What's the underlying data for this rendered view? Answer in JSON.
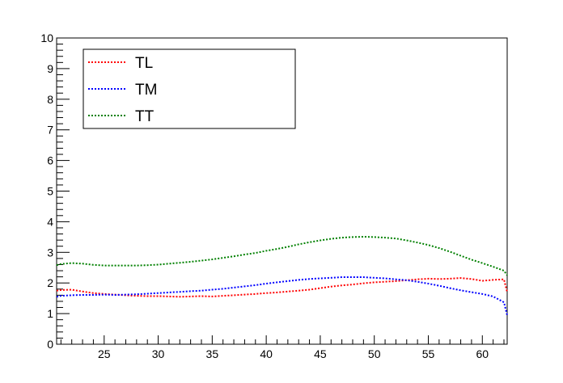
{
  "chart_data": {
    "type": "line",
    "title": "",
    "xlabel": "",
    "ylabel": "",
    "xlim": [
      20.6,
      62.3
    ],
    "ylim": [
      0,
      10
    ],
    "grid": false,
    "legend_position": "top-left",
    "x_ticks": [
      25,
      30,
      35,
      40,
      45,
      50,
      55,
      60
    ],
    "y_ticks": [
      0,
      1,
      2,
      3,
      4,
      5,
      6,
      7,
      8,
      9,
      10
    ],
    "x": [
      20.6,
      21,
      22,
      23,
      24,
      25,
      26,
      27,
      28,
      29,
      30,
      31,
      32,
      33,
      34,
      35,
      36,
      37,
      38,
      39,
      40,
      41,
      42,
      43,
      44,
      45,
      46,
      47,
      48,
      49,
      50,
      51,
      52,
      53,
      54,
      55,
      56,
      57,
      58,
      59,
      60,
      61,
      62,
      62.3
    ],
    "series": [
      {
        "name": "TL",
        "color": "#ff0000",
        "values": [
          1.75,
          1.77,
          1.78,
          1.72,
          1.67,
          1.64,
          1.62,
          1.6,
          1.58,
          1.57,
          1.57,
          1.56,
          1.55,
          1.56,
          1.57,
          1.56,
          1.58,
          1.6,
          1.62,
          1.64,
          1.67,
          1.69,
          1.72,
          1.75,
          1.78,
          1.83,
          1.88,
          1.92,
          1.95,
          1.99,
          2.02,
          2.04,
          2.06,
          2.09,
          2.12,
          2.14,
          2.13,
          2.14,
          2.16,
          2.13,
          2.07,
          2.1,
          2.12,
          1.7
        ]
      },
      {
        "name": "TM",
        "color": "#0000ff",
        "values": [
          1.55,
          1.58,
          1.6,
          1.61,
          1.61,
          1.62,
          1.61,
          1.62,
          1.63,
          1.65,
          1.67,
          1.69,
          1.71,
          1.73,
          1.75,
          1.78,
          1.81,
          1.85,
          1.89,
          1.93,
          1.98,
          2.02,
          2.06,
          2.1,
          2.13,
          2.15,
          2.17,
          2.19,
          2.19,
          2.19,
          2.17,
          2.15,
          2.12,
          2.09,
          2.04,
          1.98,
          1.91,
          1.83,
          1.76,
          1.7,
          1.64,
          1.56,
          1.37,
          0.95
        ]
      },
      {
        "name": "TT",
        "color": "#008000",
        "values": [
          2.58,
          2.62,
          2.65,
          2.63,
          2.59,
          2.57,
          2.57,
          2.57,
          2.57,
          2.58,
          2.6,
          2.63,
          2.66,
          2.69,
          2.73,
          2.77,
          2.82,
          2.87,
          2.93,
          2.98,
          3.05,
          3.11,
          3.18,
          3.26,
          3.33,
          3.39,
          3.44,
          3.48,
          3.5,
          3.51,
          3.5,
          3.48,
          3.45,
          3.39,
          3.32,
          3.24,
          3.14,
          3.02,
          2.89,
          2.76,
          2.65,
          2.53,
          2.4,
          2.25
        ]
      }
    ]
  }
}
